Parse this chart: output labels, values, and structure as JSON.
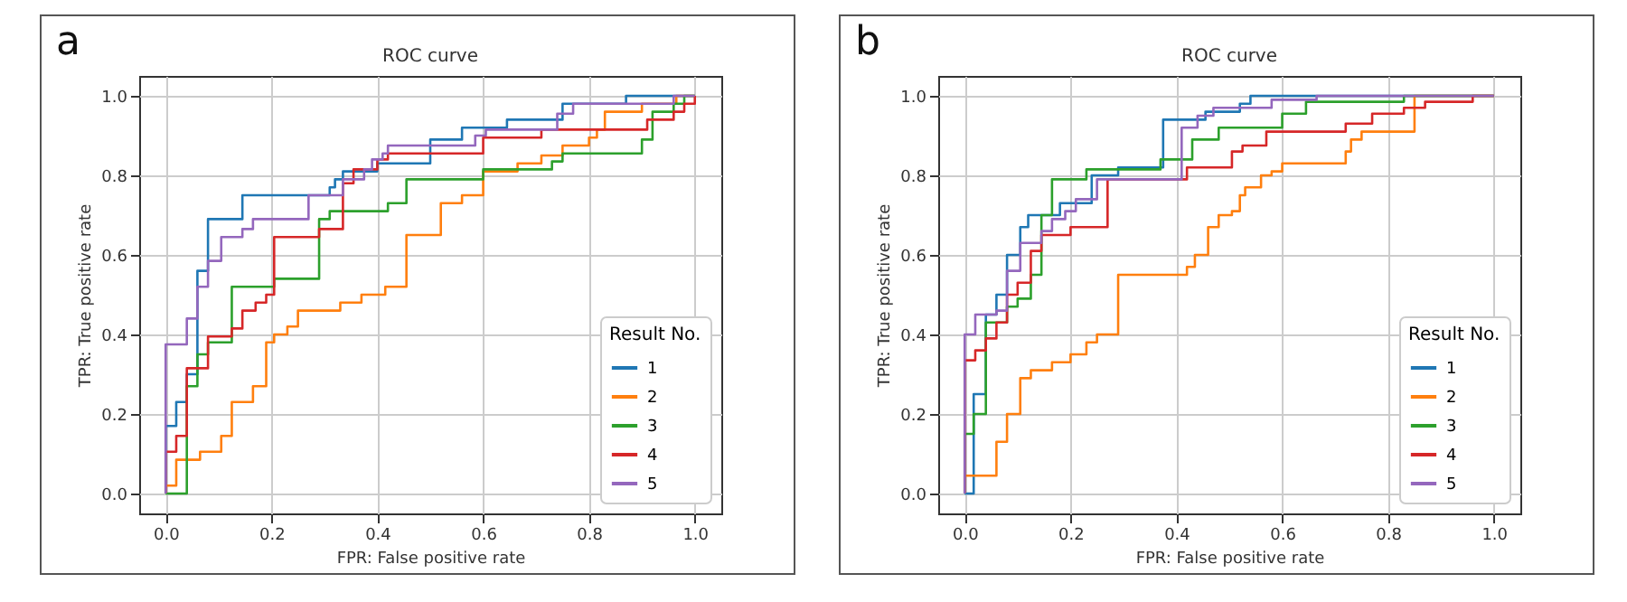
{
  "chart_data": [
    {
      "type": "step",
      "title": "ROC curve",
      "xlabel": "FPR: False positive rate",
      "ylabel": "TPR: True positive rate",
      "legend_title": "Result No.",
      "legend": "bottom right",
      "grid": true,
      "annotations": [
        "a"
      ],
      "xlim": [
        -0.05,
        1.05
      ],
      "ylim": [
        -0.05,
        1.05
      ],
      "xticks": [
        {
          "value": 0,
          "label": "0.0"
        },
        {
          "value": 0.2,
          "label": "0.2"
        },
        {
          "value": 0.4,
          "label": "0.4"
        },
        {
          "value": 0.6,
          "label": "0.6"
        },
        {
          "value": 0.8,
          "label": "0.8"
        },
        {
          "value": 1,
          "label": "1.0"
        }
      ],
      "yticks": [
        {
          "value": 0,
          "label": "0.0"
        },
        {
          "value": 0.2,
          "label": "0.2"
        },
        {
          "value": 0.4,
          "label": "0.4"
        },
        {
          "value": 0.6,
          "label": "0.6"
        },
        {
          "value": 0.8,
          "label": "0.8"
        },
        {
          "value": 1,
          "label": "1.0"
        }
      ],
      "series": [
        {
          "name": "1",
          "color": "#1f77b4",
          "x": [
            0,
            0,
            0.02,
            0.04,
            0.06,
            0.08,
            0.145,
            0.31,
            0.32,
            0.335,
            0.4,
            0.5,
            0.56,
            0.645,
            0.75,
            0.87,
            1.0
          ],
          "values": [
            0,
            0.17,
            0.23,
            0.3,
            0.56,
            0.69,
            0.75,
            0.77,
            0.79,
            0.81,
            0.83,
            0.89,
            0.92,
            0.94,
            0.98,
            1.0,
            1.0
          ]
        },
        {
          "name": "2",
          "color": "#ff7f0e",
          "x": [
            0,
            0,
            0.02,
            0.065,
            0.105,
            0.125,
            0.165,
            0.19,
            0.205,
            0.23,
            0.25,
            0.33,
            0.37,
            0.415,
            0.455,
            0.52,
            0.56,
            0.6,
            0.665,
            0.71,
            0.75,
            0.8,
            0.815,
            0.83,
            0.9,
            0.965,
            1.0
          ],
          "values": [
            0,
            0.02,
            0.085,
            0.105,
            0.145,
            0.23,
            0.27,
            0.38,
            0.4,
            0.42,
            0.46,
            0.48,
            0.5,
            0.52,
            0.65,
            0.73,
            0.75,
            0.81,
            0.83,
            0.85,
            0.875,
            0.895,
            0.915,
            0.96,
            0.98,
            1.0,
            1.0
          ]
        },
        {
          "name": "3",
          "color": "#2ca02c",
          "x": [
            0,
            0,
            0.04,
            0.06,
            0.08,
            0.125,
            0.205,
            0.29,
            0.31,
            0.42,
            0.455,
            0.6,
            0.73,
            0.75,
            0.9,
            0.92,
            0.96,
            0.98,
            1.0
          ],
          "values": [
            0,
            0,
            0.27,
            0.35,
            0.38,
            0.52,
            0.54,
            0.69,
            0.71,
            0.73,
            0.79,
            0.815,
            0.835,
            0.855,
            0.89,
            0.96,
            0.98,
            1.0,
            1.0
          ]
        },
        {
          "name": "4",
          "color": "#d62728",
          "x": [
            0,
            0,
            0.02,
            0.04,
            0.08,
            0.125,
            0.145,
            0.17,
            0.19,
            0.205,
            0.29,
            0.335,
            0.355,
            0.4,
            0.42,
            0.6,
            0.71,
            0.91,
            0.96,
            0.98,
            1.0
          ],
          "values": [
            0,
            0.105,
            0.145,
            0.315,
            0.395,
            0.415,
            0.46,
            0.48,
            0.5,
            0.645,
            0.665,
            0.78,
            0.815,
            0.84,
            0.855,
            0.895,
            0.915,
            0.94,
            0.96,
            0.98,
            1.0
          ]
        },
        {
          "name": "5",
          "color": "#9467bd",
          "x": [
            0,
            0,
            0.04,
            0.06,
            0.08,
            0.105,
            0.145,
            0.165,
            0.27,
            0.335,
            0.375,
            0.39,
            0.41,
            0.42,
            0.585,
            0.605,
            0.74,
            0.77,
            0.96,
            1.0
          ],
          "values": [
            0,
            0.375,
            0.44,
            0.52,
            0.585,
            0.645,
            0.665,
            0.69,
            0.75,
            0.79,
            0.815,
            0.84,
            0.855,
            0.875,
            0.9,
            0.915,
            0.955,
            0.98,
            1.0,
            1.0
          ]
        }
      ]
    },
    {
      "type": "step",
      "title": "ROC curve",
      "xlabel": "FPR: False positive rate",
      "ylabel": "TPR: True positive rate",
      "legend_title": "Result No.",
      "legend": "bottom right",
      "grid": true,
      "annotations": [
        "b"
      ],
      "xlim": [
        -0.05,
        1.05
      ],
      "ylim": [
        -0.05,
        1.05
      ],
      "xticks": [
        {
          "value": 0,
          "label": "0.0"
        },
        {
          "value": 0.2,
          "label": "0.2"
        },
        {
          "value": 0.4,
          "label": "0.4"
        },
        {
          "value": 0.6,
          "label": "0.6"
        },
        {
          "value": 0.8,
          "label": "0.8"
        },
        {
          "value": 1,
          "label": "1.0"
        }
      ],
      "yticks": [
        {
          "value": 0,
          "label": "0.0"
        },
        {
          "value": 0.2,
          "label": "0.2"
        },
        {
          "value": 0.4,
          "label": "0.4"
        },
        {
          "value": 0.6,
          "label": "0.6"
        },
        {
          "value": 0.8,
          "label": "0.8"
        },
        {
          "value": 1,
          "label": "1.0"
        }
      ],
      "series": [
        {
          "name": "1",
          "color": "#1f77b4",
          "x": [
            0,
            0.017,
            0.04,
            0.06,
            0.08,
            0.105,
            0.12,
            0.18,
            0.24,
            0.29,
            0.375,
            0.455,
            0.52,
            0.54,
            1.0
          ],
          "values": [
            0,
            0.25,
            0.45,
            0.5,
            0.6,
            0.67,
            0.7,
            0.73,
            0.8,
            0.82,
            0.94,
            0.96,
            0.98,
            1.0,
            1.0
          ]
        },
        {
          "name": "2",
          "color": "#ff7f0e",
          "x": [
            0,
            0,
            0.06,
            0.08,
            0.105,
            0.125,
            0.165,
            0.2,
            0.23,
            0.25,
            0.29,
            0.42,
            0.435,
            0.46,
            0.48,
            0.505,
            0.52,
            0.53,
            0.56,
            0.58,
            0.6,
            0.72,
            0.73,
            0.75,
            0.85,
            1.0
          ],
          "values": [
            0,
            0.045,
            0.13,
            0.2,
            0.29,
            0.31,
            0.33,
            0.35,
            0.38,
            0.4,
            0.55,
            0.57,
            0.6,
            0.67,
            0.7,
            0.71,
            0.75,
            0.77,
            0.8,
            0.81,
            0.83,
            0.86,
            0.89,
            0.91,
            1.0,
            1.0
          ]
        },
        {
          "name": "3",
          "color": "#2ca02c",
          "x": [
            0,
            0,
            0.017,
            0.04,
            0.08,
            0.1,
            0.125,
            0.145,
            0.165,
            0.23,
            0.37,
            0.43,
            0.48,
            0.505,
            0.6,
            0.645,
            0.83,
            1.0
          ],
          "values": [
            0,
            0.15,
            0.2,
            0.43,
            0.47,
            0.49,
            0.55,
            0.7,
            0.79,
            0.815,
            0.84,
            0.89,
            0.92,
            0.92,
            0.955,
            0.985,
            1.0,
            1.0
          ]
        },
        {
          "name": "4",
          "color": "#d62728",
          "x": [
            0,
            0,
            0.02,
            0.04,
            0.06,
            0.08,
            0.1,
            0.125,
            0.145,
            0.2,
            0.27,
            0.42,
            0.505,
            0.525,
            0.57,
            0.72,
            0.77,
            0.83,
            0.87,
            0.96,
            1.0
          ],
          "values": [
            0,
            0.335,
            0.36,
            0.39,
            0.43,
            0.5,
            0.53,
            0.61,
            0.65,
            0.67,
            0.79,
            0.82,
            0.86,
            0.875,
            0.91,
            0.93,
            0.955,
            0.97,
            0.985,
            1.0,
            1.0
          ]
        },
        {
          "name": "5",
          "color": "#9467bd",
          "x": [
            0,
            0,
            0.02,
            0.06,
            0.08,
            0.105,
            0.145,
            0.165,
            0.19,
            0.21,
            0.25,
            0.41,
            0.44,
            0.47,
            0.58,
            0.665,
            1.0
          ],
          "values": [
            0,
            0.4,
            0.45,
            0.46,
            0.56,
            0.63,
            0.66,
            0.69,
            0.71,
            0.74,
            0.79,
            0.92,
            0.95,
            0.97,
            0.99,
            1.0,
            1.0
          ]
        }
      ]
    }
  ]
}
